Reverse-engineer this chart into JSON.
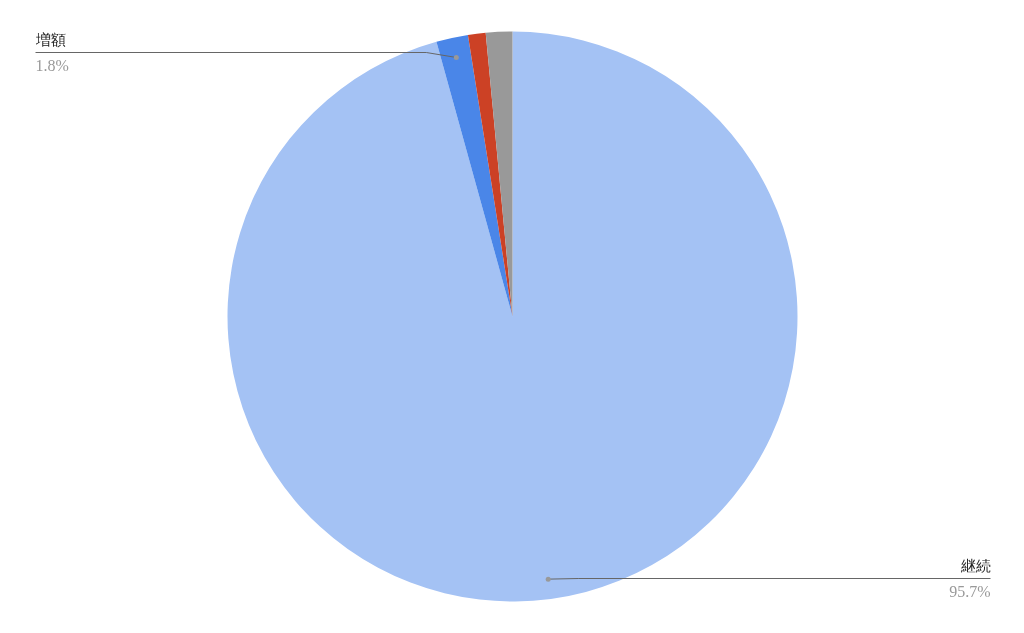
{
  "chart_data": {
    "type": "pie",
    "categories": [
      "継続",
      "増額",
      null,
      null
    ],
    "values": [
      95.7,
      1.8,
      1.0,
      1.5
    ],
    "colors": [
      "#a4c2f4",
      "#4a86e8",
      "#cc4125",
      "#999999"
    ],
    "value_labels": [
      "95.7%",
      "1.8%",
      null,
      null
    ]
  }
}
